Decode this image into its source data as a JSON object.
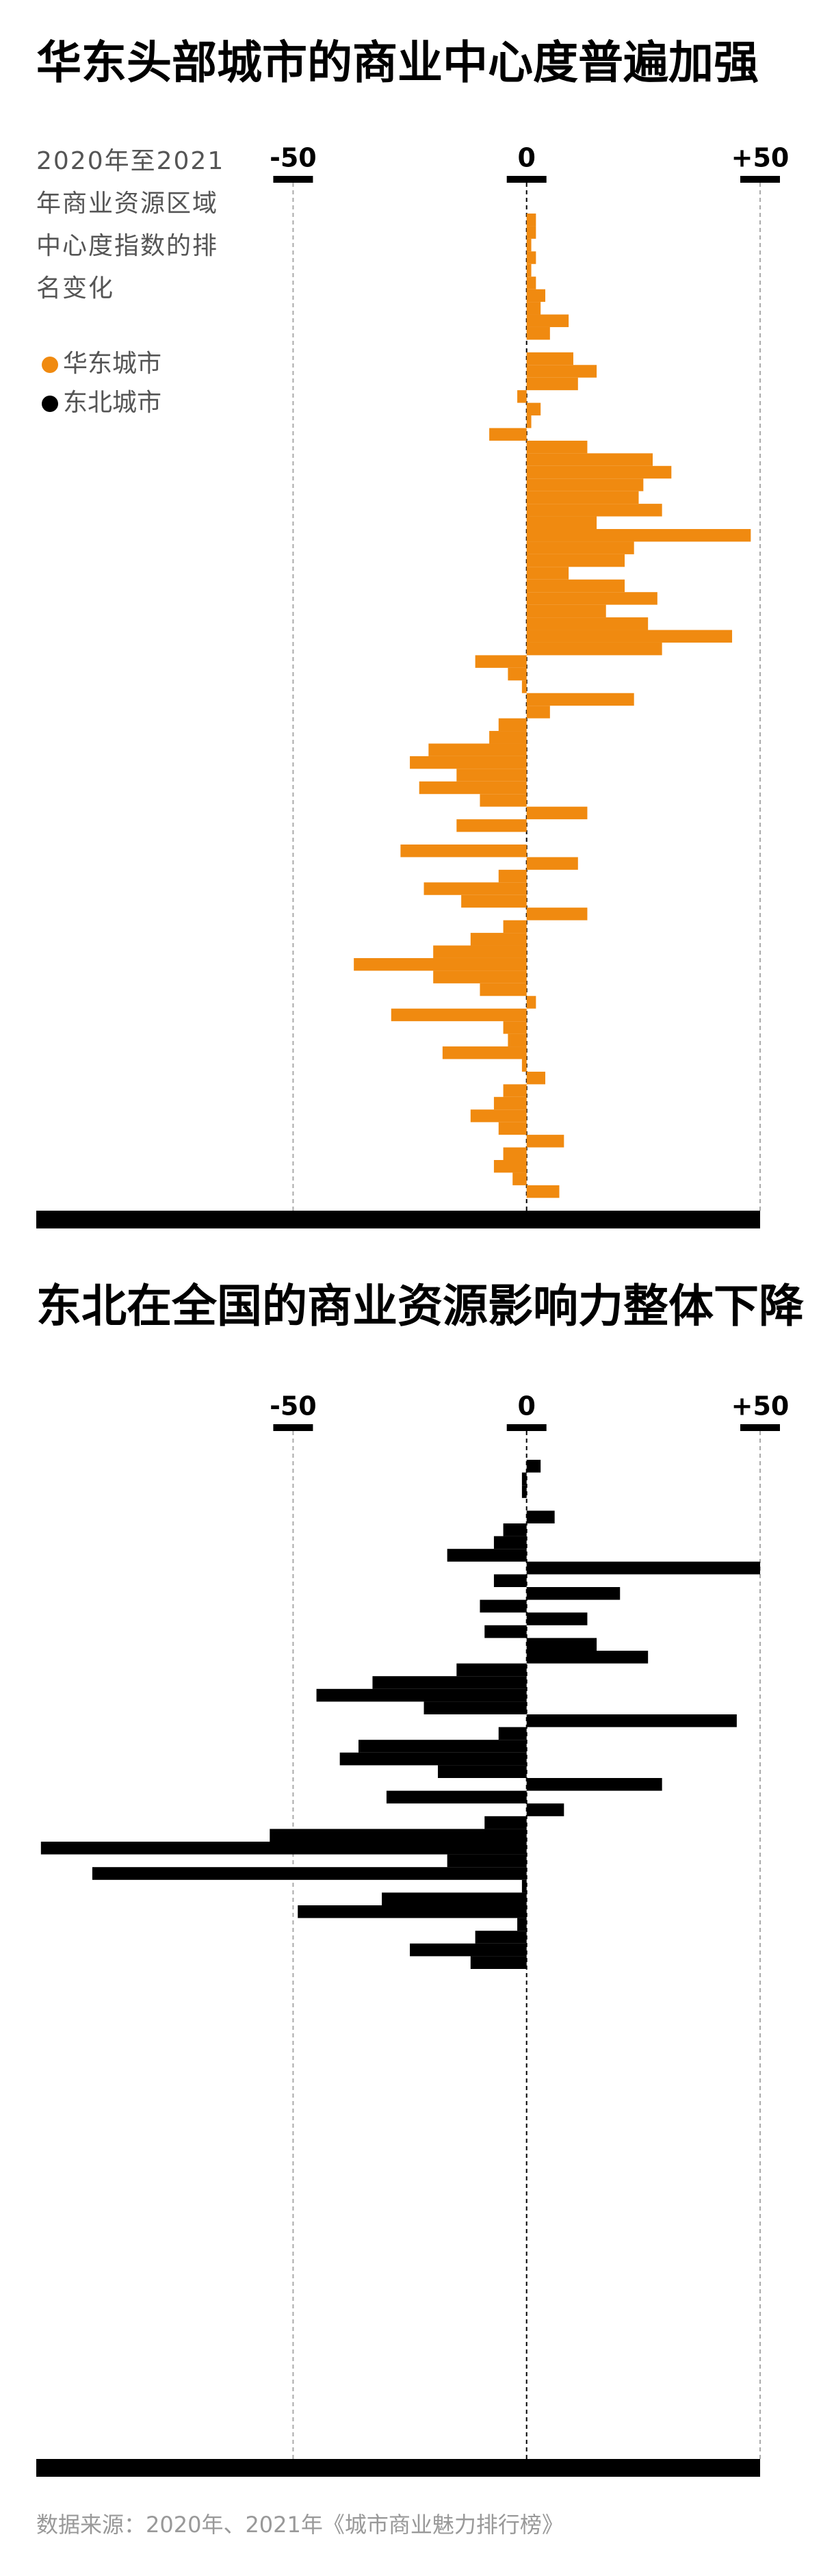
{
  "chart_data": [
    {
      "type": "bar",
      "orientation": "horizontal",
      "title": "华东头部城市的商业中心度普遍加强",
      "subtitle": "2020年至2021年商业资源区域中心度指数的排名变化",
      "xlim": [
        -105,
        50
      ],
      "xticks": [
        -50,
        0,
        {
          "value": 50,
          "label": "+50"
        }
      ],
      "grid": true,
      "series": [
        {
          "name": "华东城市",
          "color": "#f08a10",
          "values": [
            2,
            2,
            1,
            2,
            1,
            2,
            4,
            3,
            9,
            5,
            0,
            10,
            15,
            11,
            -2,
            3,
            1,
            -8,
            13,
            27,
            31,
            25,
            24,
            29,
            15,
            48,
            23,
            21,
            9,
            21,
            28,
            17,
            26,
            44,
            29,
            -11,
            -4,
            -1,
            23,
            5,
            -6,
            -8,
            -21,
            -25,
            -15,
            -23,
            -10,
            13,
            -15,
            0,
            -27,
            11,
            -6,
            -22,
            -14,
            13,
            -5,
            -12,
            -20,
            -37,
            -20,
            -10,
            2,
            -29,
            -5,
            -4,
            -18,
            -1,
            4,
            -5,
            -7,
            -12,
            -6,
            8,
            -5,
            -7,
            -3,
            7
          ]
        }
      ]
    },
    {
      "type": "bar",
      "orientation": "horizontal",
      "title": "东北在全国的商业资源影响力整体下降",
      "source": "数据来源：2020年、2021年《城市商业魅力排行榜》",
      "xlim": [
        -105,
        50
      ],
      "xticks": [
        -50,
        0,
        {
          "value": 50,
          "label": "+50"
        }
      ],
      "grid": true,
      "series": [
        {
          "name": "东北城市",
          "color": "#000000",
          "values": [
            3,
            -1,
            -1,
            0,
            6,
            -5,
            -7,
            -17,
            50,
            -7,
            20,
            -10,
            13,
            -9,
            15,
            26,
            -15,
            -33,
            -45,
            -22,
            45,
            -6,
            -36,
            -40,
            -19,
            29,
            -30,
            8,
            -9,
            -55,
            -104,
            -17,
            -93,
            -1,
            -31,
            -49,
            -2,
            -11,
            -25,
            -12
          ]
        }
      ]
    }
  ]
}
